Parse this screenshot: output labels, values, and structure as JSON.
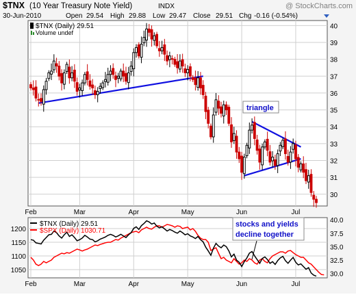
{
  "header": {
    "symbol": "$TNX",
    "description": "(10 Year Treasury Note Yield)",
    "exchange": "INDX",
    "watermark": "@ StockCharts.com",
    "date": "30-Jun-2010",
    "open_label": "Open",
    "open": "29.54",
    "high_label": "High",
    "high": "29.88",
    "low_label": "Low",
    "low": "29.47",
    "close_label": "Close",
    "close": "29.51",
    "chg_label": "Chg",
    "chg": "-0.16 (-0.54%)"
  },
  "colors": {
    "up": "#000000",
    "down": "#cc0000",
    "trendline": "#1010e0",
    "spx": "#ff0000",
    "tnx": "#000000",
    "annotation_text": "#1010c8",
    "grid": "#cfcfcf",
    "panel_bg": "#ffffff",
    "chart_bg": "#f4f4f4"
  },
  "chart_data": [
    {
      "type": "candlestick",
      "title": "$TNX (Daily) 29.51",
      "legend": [
        "$TNX (Daily) 29.51",
        "Volume undef"
      ],
      "x_tick_labels": [
        "Feb",
        "Mar",
        "Apr",
        "May",
        "Jun",
        "Jul"
      ],
      "y_ticks": [
        30,
        31,
        32,
        33,
        34,
        35,
        36,
        37,
        38,
        39,
        40
      ],
      "ylim": [
        29.3,
        40.3
      ],
      "grid": true,
      "y_axis_side": "right",
      "closes": [
        36.3,
        36.2,
        35.7,
        35.6,
        35.5,
        36.2,
        36.7,
        37.2,
        37.3,
        37.9,
        37.6,
        37.0,
        36.6,
        37.2,
        37.7,
        36.9,
        37.2,
        36.7,
        36.1,
        36.3,
        36.6,
        37.1,
        36.8,
        36.4,
        36.3,
        35.9,
        36.1,
        36.4,
        36.6,
        36.8,
        37.1,
        37.3,
        37.1,
        36.8,
        37.0,
        37.3,
        37.0,
        36.7,
        37.2,
        37.6,
        38.4,
        38.7,
        38.2,
        38.9,
        39.3,
        39.8,
        39.6,
        39.2,
        39.4,
        38.8,
        38.5,
        38.7,
        38.3,
        37.9,
        38.2,
        38.0,
        37.7,
        37.5,
        37.9,
        37.6,
        37.2,
        37.4,
        37.0,
        36.8,
        36.5,
        36.9,
        36.3,
        35.9,
        34.9,
        34.2,
        33.4,
        34.7,
        35.6,
        35.1,
        34.8,
        35.3,
        35.0,
        34.2,
        33.1,
        33.6,
        32.5,
        32.1,
        31.3,
        32.2,
        32.9,
        33.8,
        34.1,
        33.3,
        32.6,
        31.9,
        32.8,
        33.1,
        32.6,
        31.9,
        32.2,
        31.7,
        32.4,
        32.9,
        33.2,
        32.4,
        31.9,
        32.5,
        33.0,
        32.1,
        31.6,
        31.8,
        31.3,
        30.8,
        31.1,
        30.1,
        29.7,
        29.5
      ],
      "annotations": [
        {
          "text": "triangle"
        }
      ],
      "trendlines": [
        {
          "from": [
            3,
            35.4
          ],
          "to": [
            67,
            37.0
          ]
        },
        {
          "from": [
            83,
            31.1
          ],
          "to": [
            105,
            32.1
          ]
        },
        {
          "from": [
            86,
            34.3
          ],
          "to": [
            105,
            32.8
          ]
        }
      ]
    },
    {
      "type": "line",
      "legend": [
        "$TNX (Daily) 29.51",
        "$SPX (Daily) 1030.71"
      ],
      "x_tick_labels": [
        "Feb",
        "Mar",
        "Apr",
        "May",
        "Jun",
        "Jul"
      ],
      "y_ticks_left": [
        1050,
        1100,
        1150,
        1200
      ],
      "y_ticks_right": [
        30.0,
        32.5,
        35.0,
        37.5,
        40.0
      ],
      "ylim_left": [
        1020,
        1240
      ],
      "ylim_right": [
        29.2,
        40.4
      ],
      "grid": true,
      "annotations": [
        {
          "text": "stocks and yields"
        },
        {
          "text": "decline together"
        }
      ],
      "series": [
        {
          "name": "$SPX (Daily) 1030.71",
          "axis": "left",
          "values": [
            1095,
            1085,
            1070,
            1065,
            1070,
            1080,
            1075,
            1080,
            1085,
            1095,
            1100,
            1105,
            1110,
            1108,
            1112,
            1110,
            1115,
            1120,
            1125,
            1122,
            1118,
            1122,
            1125,
            1130,
            1135,
            1140,
            1138,
            1142,
            1145,
            1148,
            1150,
            1150,
            1155,
            1160,
            1158,
            1165,
            1170,
            1175,
            1180,
            1185,
            1188,
            1190,
            1185,
            1195,
            1200,
            1205,
            1200,
            1198,
            1205,
            1210,
            1210,
            1205,
            1210,
            1215,
            1213,
            1210,
            1205,
            1210,
            1208,
            1200,
            1203,
            1205,
            1195,
            1200,
            1190,
            1175,
            1165,
            1160,
            1160,
            1150,
            1120,
            1125,
            1130,
            1110,
            1090,
            1095,
            1085,
            1080,
            1075,
            1090,
            1080,
            1070,
            1075,
            1085,
            1080,
            1090,
            1085,
            1075,
            1070,
            1085,
            1090,
            1080,
            1075,
            1090,
            1100,
            1105,
            1110,
            1115,
            1115,
            1110,
            1118,
            1120,
            1112,
            1105,
            1100,
            1095,
            1095,
            1085,
            1075,
            1070,
            1060,
            1050,
            1040,
            1032,
            1031
          ]
        },
        {
          "name": "$TNX (Daily) 29.51",
          "axis": "right",
          "values": [
            36.3,
            36.2,
            35.7,
            35.6,
            35.5,
            36.2,
            36.7,
            37.2,
            37.3,
            37.9,
            37.6,
            37.0,
            36.6,
            37.2,
            37.7,
            36.9,
            37.2,
            36.7,
            36.1,
            36.3,
            36.6,
            37.1,
            36.8,
            36.4,
            36.3,
            35.9,
            36.1,
            36.4,
            36.6,
            36.8,
            37.1,
            37.3,
            37.1,
            36.8,
            37.0,
            37.3,
            37.0,
            36.7,
            37.2,
            37.6,
            38.4,
            38.7,
            38.2,
            38.9,
            39.3,
            39.8,
            39.6,
            39.2,
            39.4,
            38.8,
            38.5,
            38.7,
            38.3,
            37.9,
            38.2,
            38.0,
            37.7,
            37.5,
            37.9,
            37.6,
            37.2,
            37.4,
            37.0,
            36.8,
            36.5,
            36.9,
            36.3,
            35.9,
            34.9,
            34.2,
            33.4,
            34.7,
            35.6,
            35.1,
            34.8,
            35.3,
            35.0,
            34.2,
            33.1,
            33.6,
            32.5,
            32.1,
            31.3,
            32.2,
            32.9,
            33.8,
            34.1,
            33.3,
            32.6,
            31.9,
            32.8,
            33.1,
            32.6,
            31.9,
            32.2,
            31.7,
            32.4,
            32.9,
            33.2,
            32.4,
            31.9,
            32.5,
            33.0,
            32.1,
            31.6,
            31.8,
            31.3,
            30.8,
            31.1,
            30.1,
            29.7,
            29.5
          ]
        }
      ]
    }
  ]
}
